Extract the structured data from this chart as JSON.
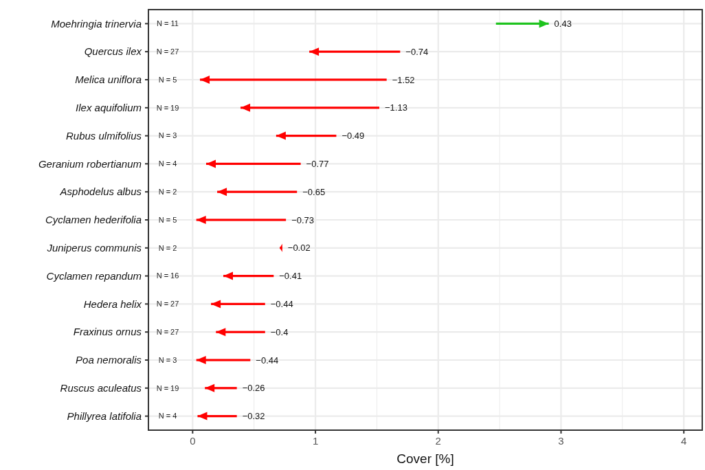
{
  "chart_data": {
    "type": "bar",
    "orientation": "horizontal",
    "xlabel": "Cover [%]",
    "categories": [
      "Moehringia trinervia",
      "Quercus ilex",
      "Melica uniflora",
      "Ilex aquifolium",
      "Rubus ulmifolius",
      "Geranium robertianum",
      "Asphodelus albus",
      "Cyclamen hederifolia",
      "Juniperus communis",
      "Cyclamen repandum",
      "Hedera helix",
      "Fraxinus ornus",
      "Poa nemoralis",
      "Ruscus aculeatus",
      "Phillyrea latifolia"
    ],
    "base": [
      2.47,
      1.69,
      1.58,
      1.52,
      1.17,
      0.88,
      0.85,
      0.76,
      0.73,
      0.66,
      0.59,
      0.59,
      0.47,
      0.36,
      0.36
    ],
    "values": [
      0.43,
      -0.74,
      -1.52,
      -1.13,
      -0.49,
      -0.77,
      -0.65,
      -0.73,
      -0.02,
      -0.41,
      -0.44,
      -0.4,
      -0.44,
      -0.26,
      -0.32
    ],
    "value_labels": [
      "0.43",
      "−0.74",
      "−1.52",
      "−1.13",
      "−0.49",
      "−0.77",
      "−0.65",
      "−0.73",
      "−0.02",
      "−0.41",
      "−0.44",
      "−0.4",
      "−0.44",
      "−0.26",
      "−0.32"
    ],
    "colors": [
      "#1ec31e",
      "#ff0000",
      "#ff0000",
      "#ff0000",
      "#ff0000",
      "#ff0000",
      "#ff0000",
      "#ff0000",
      "#ff0000",
      "#ff0000",
      "#ff0000",
      "#ff0000",
      "#ff0000",
      "#ff0000",
      "#ff0000"
    ],
    "annotations": [
      "N = 11",
      "N = 27",
      "N = 5",
      "N = 19",
      "N = 3",
      "N = 4",
      "N = 2",
      "N = 5",
      "N = 2",
      "N = 16",
      "N = 27",
      "N = 27",
      "N = 3",
      "N = 19",
      "N = 4"
    ],
    "xlim": [
      -0.36,
      4.15
    ],
    "xticks": [
      0,
      {
        "value": 0.5,
        "label": null
      },
      1,
      {
        "value": 1.5,
        "label": null
      },
      2,
      {
        "value": 2.5,
        "label": null
      },
      3,
      {
        "value": 3.5,
        "label": null
      },
      4
    ],
    "grid": true
  }
}
